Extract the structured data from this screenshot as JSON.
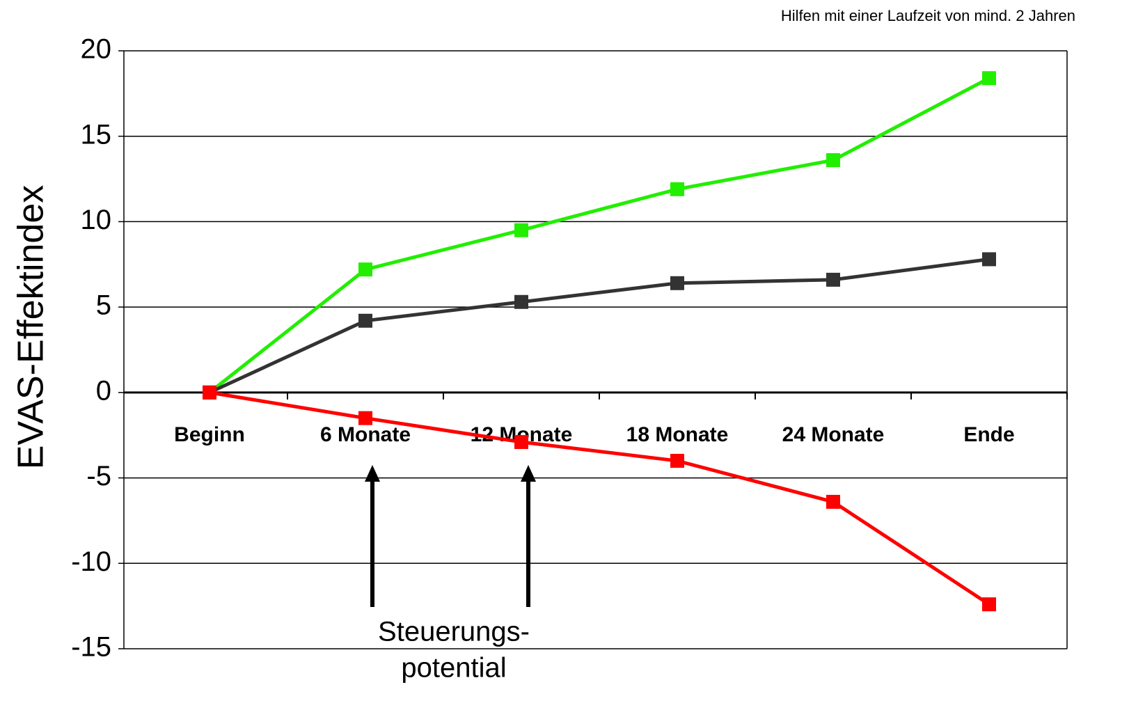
{
  "chart_data": {
    "type": "line",
    "subtitle": "Hilfen mit einer Laufzeit von mind. 2 Jahren",
    "y_label": "EVAS-Effektindex",
    "categories": [
      "Beginn",
      "6 Monate",
      "12 Monate",
      "18 Monate",
      "24 Monate",
      "Ende"
    ],
    "series": [
      {
        "color": "#22ee00",
        "values": [
          0,
          7.2,
          9.5,
          11.9,
          13.6,
          18.4
        ]
      },
      {
        "color": "#333333",
        "values": [
          0,
          4.2,
          5.3,
          6.4,
          6.6,
          7.8
        ]
      },
      {
        "color": "#ff0000",
        "values": [
          0,
          -1.5,
          -2.9,
          -4.0,
          -6.4,
          -12.4
        ]
      }
    ],
    "ylim": [
      -15,
      20
    ],
    "yticks": [
      -15,
      -10,
      -5,
      0,
      5,
      10,
      15,
      20
    ],
    "grid": true,
    "annotation": [
      "Steuerungs-",
      "potential"
    ]
  }
}
